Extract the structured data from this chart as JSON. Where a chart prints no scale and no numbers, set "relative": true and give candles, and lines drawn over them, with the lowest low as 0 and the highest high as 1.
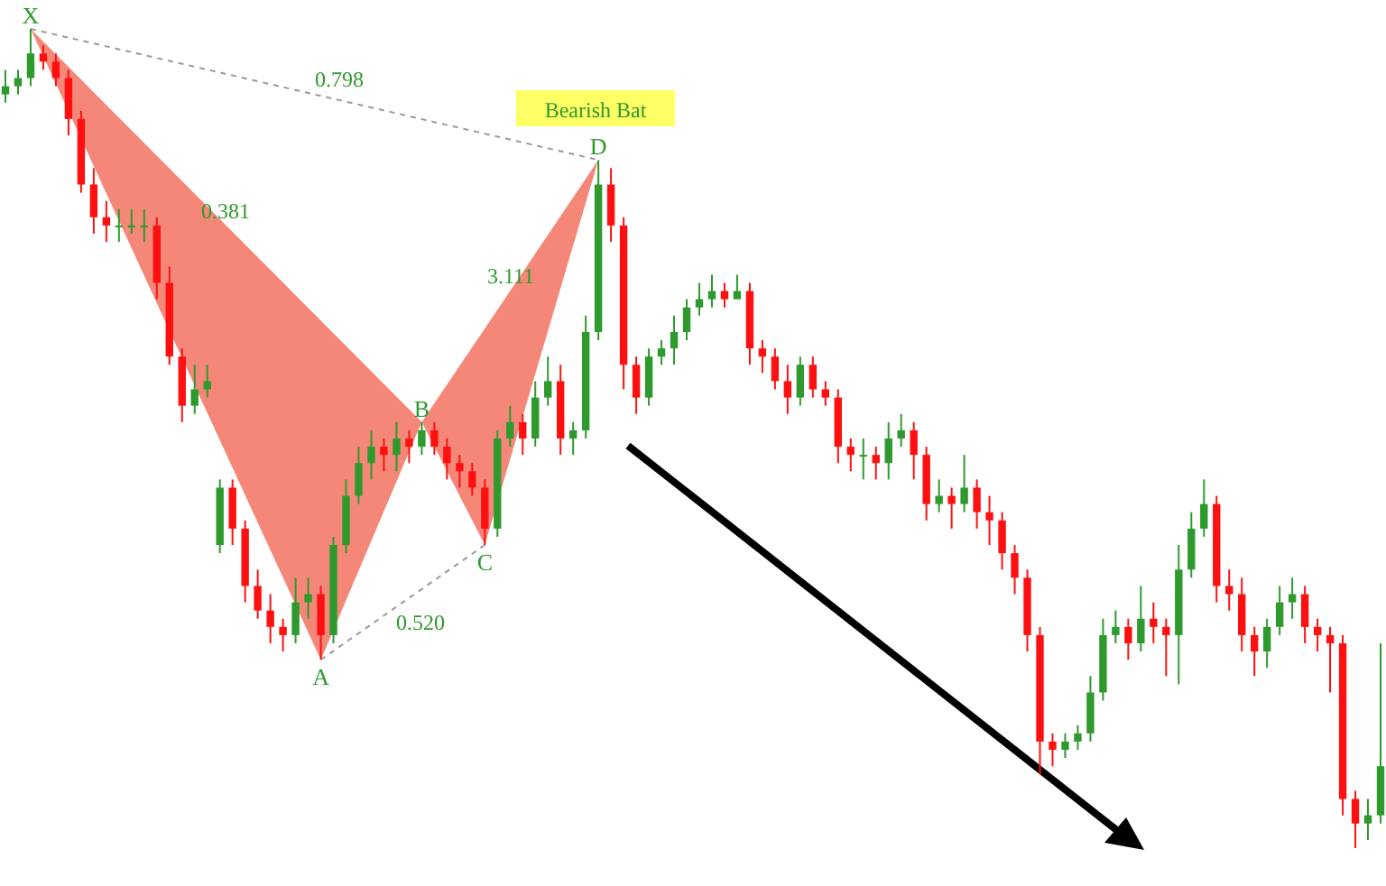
{
  "chart_data": {
    "type": "candlestick",
    "relative": true,
    "categories": [
      null,
      null,
      null,
      null,
      null,
      null,
      null,
      null,
      null,
      null,
      null,
      null,
      null,
      null,
      null,
      null,
      null,
      null,
      null,
      null,
      null,
      null,
      null,
      null,
      null,
      null,
      null,
      null,
      null,
      null,
      null,
      null,
      null,
      null,
      null,
      null,
      null,
      null,
      null,
      null,
      null,
      null,
      null,
      null,
      null,
      null,
      null,
      null,
      null,
      null,
      null,
      null,
      null,
      null,
      null,
      null,
      null,
      null,
      null,
      null,
      null,
      null,
      null,
      null,
      null,
      null,
      null,
      null,
      null,
      null,
      null,
      null,
      null,
      null,
      null,
      null,
      null,
      null,
      null,
      null,
      null,
      null,
      null,
      null,
      null,
      null,
      null,
      null,
      null,
      null,
      null,
      null,
      null,
      null,
      null,
      null,
      null,
      null,
      null,
      null,
      null,
      null,
      null,
      null,
      null,
      null,
      null,
      null,
      null,
      null
    ],
    "ohlc": [
      [
        0.92,
        0.95,
        0.91,
        0.93
      ],
      [
        0.93,
        0.95,
        0.92,
        0.94
      ],
      [
        0.94,
        1,
        0.93,
        0.97
      ],
      [
        0.97,
        0.98,
        0.95,
        0.96
      ],
      [
        0.96,
        0.97,
        0.93,
        0.94
      ],
      [
        0.94,
        0.95,
        0.87,
        0.89
      ],
      [
        0.89,
        0.9,
        0.8,
        0.81
      ],
      [
        0.81,
        0.83,
        0.75,
        0.77
      ],
      [
        0.77,
        0.79,
        0.74,
        0.76
      ],
      [
        0.76,
        0.78,
        0.74,
        0.76
      ],
      [
        0.76,
        0.78,
        0.75,
        0.76
      ],
      [
        0.76,
        0.78,
        0.74,
        0.76
      ],
      [
        0.76,
        0.77,
        0.67,
        0.69
      ],
      [
        0.69,
        0.71,
        0.59,
        0.6
      ],
      [
        0.6,
        0.61,
        0.52,
        0.54
      ],
      [
        0.54,
        0.59,
        0.53,
        0.56
      ],
      [
        0.56,
        0.59,
        0.55,
        0.57
      ],
      [
        0.37,
        0.45,
        0.36,
        0.44
      ],
      [
        0.44,
        0.45,
        0.37,
        0.39
      ],
      [
        0.39,
        0.4,
        0.3,
        0.32
      ],
      [
        0.32,
        0.34,
        0.28,
        0.29
      ],
      [
        0.29,
        0.31,
        0.25,
        0.27
      ],
      [
        0.27,
        0.28,
        0.24,
        0.26
      ],
      [
        0.26,
        0.33,
        0.25,
        0.3
      ],
      [
        0.3,
        0.33,
        0.28,
        0.31
      ],
      [
        0.31,
        0.32,
        0.23,
        0.26
      ],
      [
        0.26,
        0.38,
        0.25,
        0.37
      ],
      [
        0.37,
        0.45,
        0.36,
        0.43
      ],
      [
        0.43,
        0.49,
        0.42,
        0.47
      ],
      [
        0.47,
        0.51,
        0.45,
        0.49
      ],
      [
        0.49,
        0.5,
        0.46,
        0.48
      ],
      [
        0.48,
        0.52,
        0.46,
        0.5
      ],
      [
        0.5,
        0.51,
        0.47,
        0.49
      ],
      [
        0.49,
        0.52,
        0.48,
        0.51
      ],
      [
        0.51,
        0.52,
        0.48,
        0.49
      ],
      [
        0.49,
        0.5,
        0.45,
        0.47
      ],
      [
        0.47,
        0.48,
        0.44,
        0.46
      ],
      [
        0.46,
        0.47,
        0.43,
        0.44
      ],
      [
        0.44,
        0.45,
        0.37,
        0.39
      ],
      [
        0.39,
        0.51,
        0.38,
        0.5
      ],
      [
        0.5,
        0.54,
        0.49,
        0.52
      ],
      [
        0.52,
        0.53,
        0.48,
        0.5
      ],
      [
        0.5,
        0.57,
        0.49,
        0.55
      ],
      [
        0.55,
        0.6,
        0.54,
        0.57
      ],
      [
        0.57,
        0.59,
        0.48,
        0.5
      ],
      [
        0.5,
        0.52,
        0.48,
        0.51
      ],
      [
        0.51,
        0.65,
        0.5,
        0.63
      ],
      [
        0.63,
        0.84,
        0.62,
        0.81
      ],
      [
        0.81,
        0.83,
        0.74,
        0.76
      ],
      [
        0.76,
        0.77,
        0.56,
        0.59
      ],
      [
        0.59,
        0.6,
        0.53,
        0.55
      ],
      [
        0.55,
        0.61,
        0.54,
        0.6
      ],
      [
        0.6,
        0.62,
        0.59,
        0.61
      ],
      [
        0.61,
        0.65,
        0.59,
        0.63
      ],
      [
        0.63,
        0.67,
        0.62,
        0.66
      ],
      [
        0.66,
        0.69,
        0.65,
        0.67
      ],
      [
        0.67,
        0.7,
        0.66,
        0.68
      ],
      [
        0.68,
        0.69,
        0.66,
        0.67
      ],
      [
        0.67,
        0.7,
        0.67,
        0.68
      ],
      [
        0.68,
        0.69,
        0.59,
        0.61
      ],
      [
        0.61,
        0.62,
        0.58,
        0.6
      ],
      [
        0.6,
        0.61,
        0.56,
        0.57
      ],
      [
        0.57,
        0.59,
        0.53,
        0.55
      ],
      [
        0.55,
        0.6,
        0.54,
        0.59
      ],
      [
        0.59,
        0.6,
        0.55,
        0.56
      ],
      [
        0.56,
        0.57,
        0.54,
        0.55
      ],
      [
        0.55,
        0.56,
        0.47,
        0.49
      ],
      [
        0.49,
        0.5,
        0.46,
        0.48
      ],
      [
        0.48,
        0.5,
        0.45,
        0.48
      ],
      [
        0.48,
        0.49,
        0.45,
        0.47
      ],
      [
        0.47,
        0.52,
        0.45,
        0.5
      ],
      [
        0.5,
        0.53,
        0.49,
        0.51
      ],
      [
        0.51,
        0.52,
        0.45,
        0.48
      ],
      [
        0.48,
        0.49,
        0.4,
        0.42
      ],
      [
        0.42,
        0.45,
        0.41,
        0.43
      ],
      [
        0.43,
        0.44,
        0.39,
        0.42
      ],
      [
        0.42,
        0.48,
        0.41,
        0.44
      ],
      [
        0.44,
        0.45,
        0.39,
        0.41
      ],
      [
        0.41,
        0.43,
        0.37,
        0.4
      ],
      [
        0.4,
        0.41,
        0.34,
        0.36
      ],
      [
        0.36,
        0.37,
        0.31,
        0.33
      ],
      [
        0.33,
        0.34,
        0.24,
        0.26
      ],
      [
        0.26,
        0.27,
        0.09,
        0.13
      ],
      [
        0.13,
        0.14,
        0.1,
        0.12
      ],
      [
        0.12,
        0.14,
        0.11,
        0.13
      ],
      [
        0.13,
        0.15,
        0.12,
        0.14
      ],
      [
        0.14,
        0.21,
        0.13,
        0.19
      ],
      [
        0.19,
        0.28,
        0.18,
        0.26
      ],
      [
        0.26,
        0.29,
        0.25,
        0.27
      ],
      [
        0.27,
        0.28,
        0.23,
        0.25
      ],
      [
        0.25,
        0.32,
        0.24,
        0.28
      ],
      [
        0.28,
        0.3,
        0.25,
        0.27
      ],
      [
        0.27,
        0.28,
        0.21,
        0.26
      ],
      [
        0.26,
        0.37,
        0.2,
        0.34
      ],
      [
        0.34,
        0.41,
        0.33,
        0.39
      ],
      [
        0.39,
        0.45,
        0.38,
        0.42
      ],
      [
        0.42,
        0.43,
        0.3,
        0.32
      ],
      [
        0.32,
        0.34,
        0.29,
        0.31
      ],
      [
        0.31,
        0.33,
        0.24,
        0.26
      ],
      [
        0.26,
        0.27,
        0.21,
        0.24
      ],
      [
        0.24,
        0.28,
        0.22,
        0.27
      ],
      [
        0.27,
        0.32,
        0.26,
        0.3
      ],
      [
        0.3,
        0.33,
        0.28,
        0.31
      ],
      [
        0.31,
        0.32,
        0.25,
        0.27
      ],
      [
        0.27,
        0.28,
        0.24,
        0.26
      ],
      [
        0.26,
        0.27,
        0.19,
        0.25
      ],
      [
        0.25,
        0.26,
        0.04,
        0.06
      ],
      [
        0.06,
        0.07,
        0,
        0.03
      ],
      [
        0.03,
        0.06,
        0.01,
        0.04
      ],
      [
        0.04,
        0.25,
        0.03,
        0.1
      ]
    ],
    "annotations": [
      "X",
      "A",
      "B",
      "C",
      "D",
      "0.798",
      "0.381",
      "3.111",
      "0.520",
      "Bearish Bat"
    ]
  }
}
